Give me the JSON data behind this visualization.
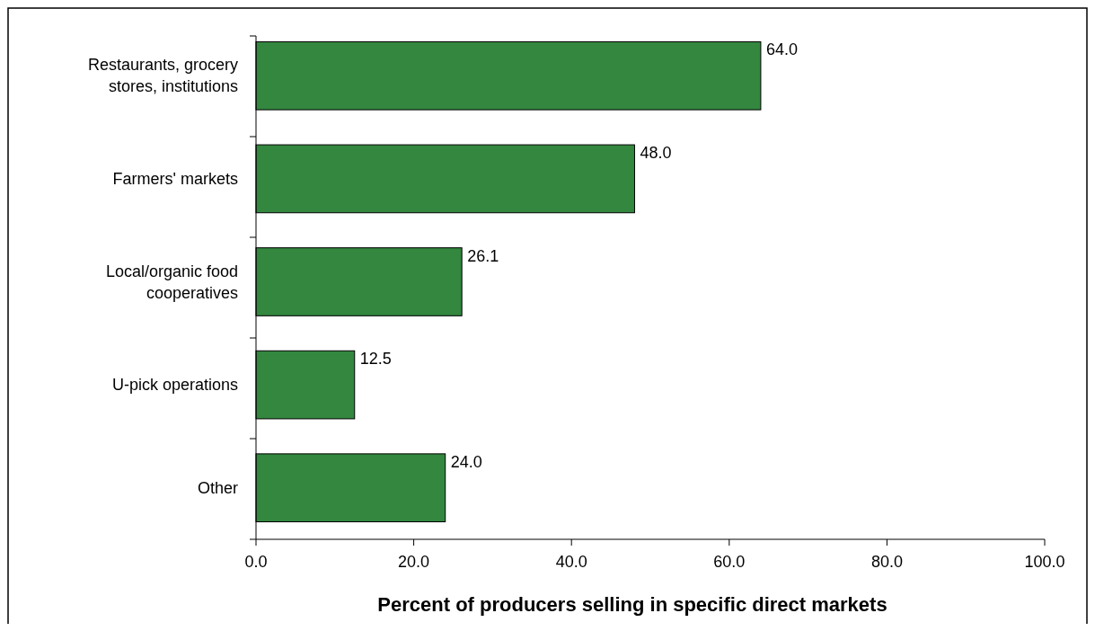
{
  "chart_data": {
    "type": "bar",
    "orientation": "horizontal",
    "xlabel": "Percent of producers selling in specific direct markets",
    "categories": [
      "Restaurants, grocery stores, institutions",
      "Farmers' markets",
      "Local/organic food cooperatives",
      "U-pick operations",
      "Other"
    ],
    "values": [
      64.0,
      48.0,
      26.1,
      12.5,
      24.0
    ],
    "value_labels": [
      "64.0",
      "48.0",
      "26.1",
      "12.5",
      "24.0"
    ],
    "color": "#33873f",
    "xlim": [
      0,
      100
    ],
    "xticks": [
      {
        "value": 0,
        "label": "0.0"
      },
      {
        "value": 20,
        "label": "20.0"
      },
      {
        "value": 40,
        "label": "40.0"
      },
      {
        "value": 60,
        "label": "60.0"
      },
      {
        "value": 80,
        "label": "80.0"
      },
      {
        "value": 100,
        "label": "100.0"
      }
    ],
    "grid": false
  }
}
